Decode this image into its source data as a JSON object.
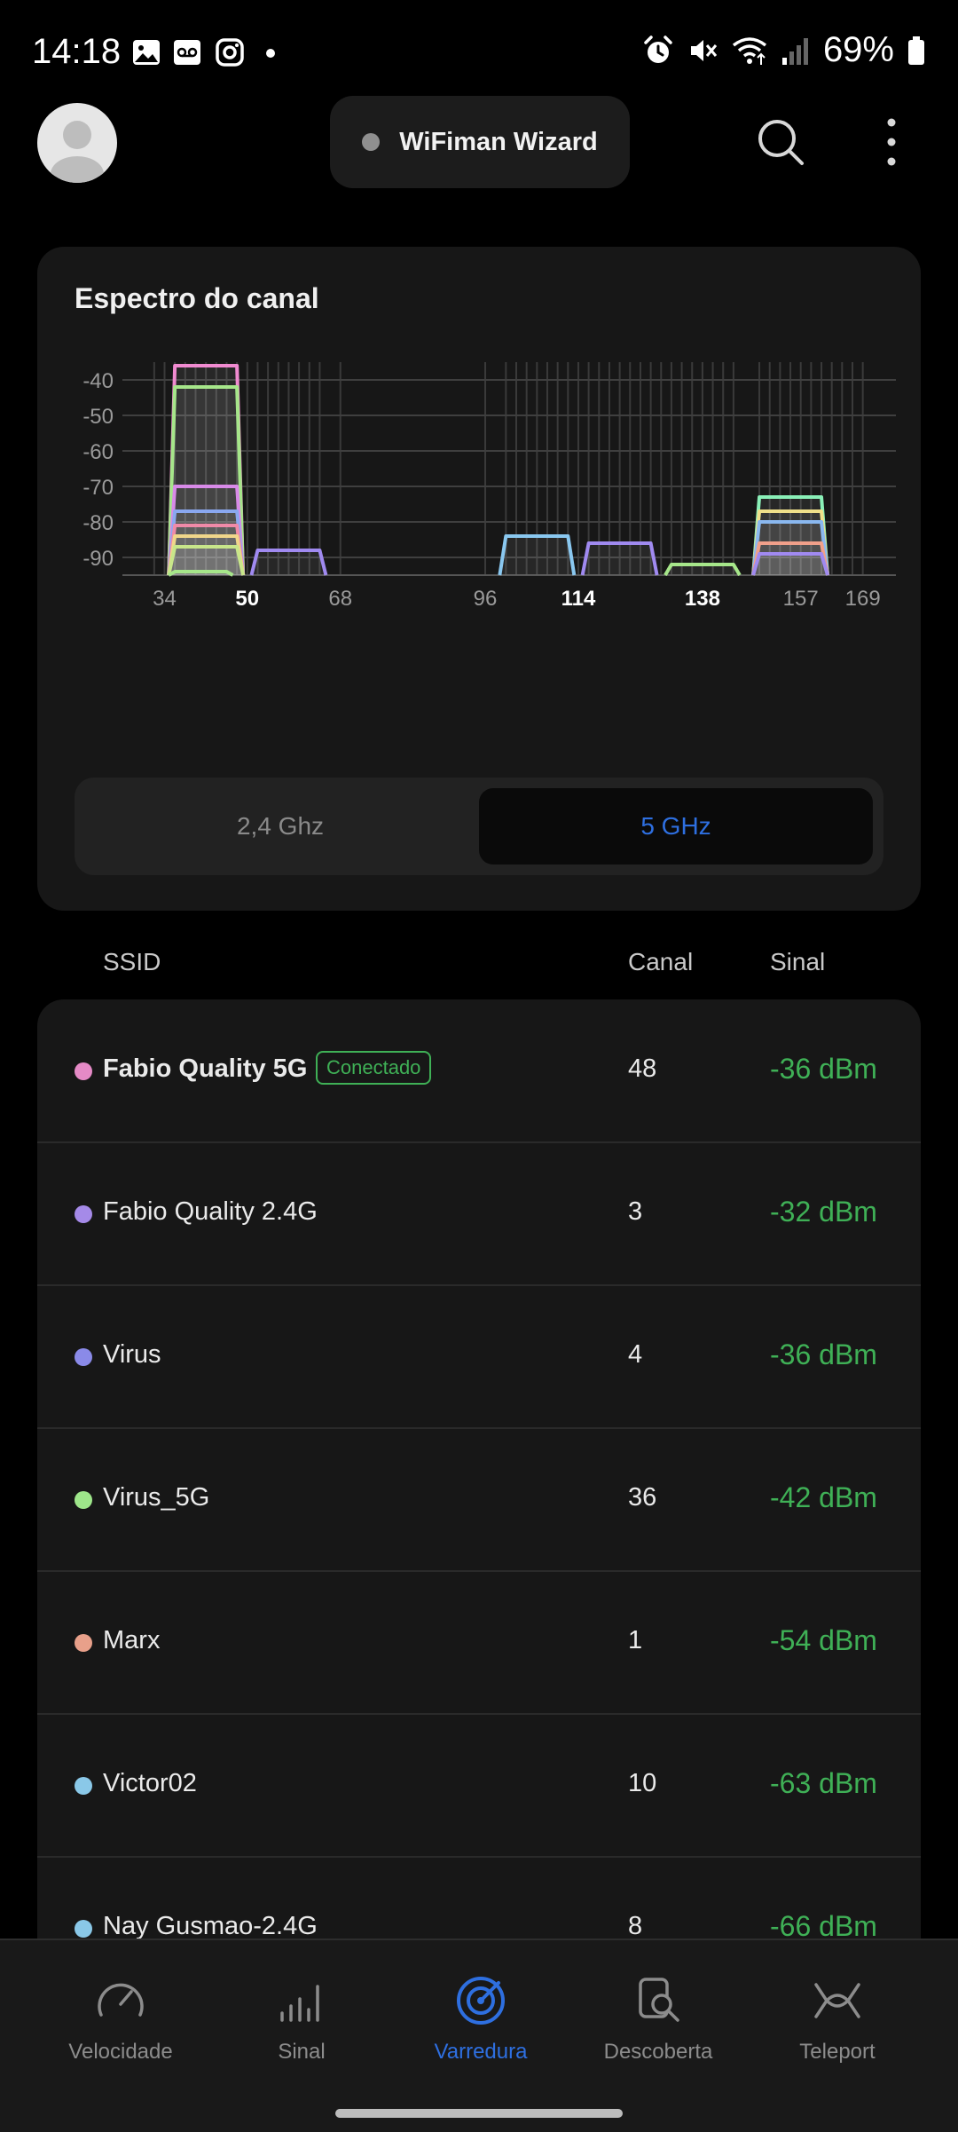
{
  "status_bar": {
    "time": "14:18",
    "battery": "69%"
  },
  "header": {
    "wizard_title": "WiFiman Wizard"
  },
  "spectrum": {
    "title": "Espectro do canal",
    "bands": {
      "option_24": "2,4 Ghz",
      "option_5": "5 GHz",
      "selected": "5 GHz"
    }
  },
  "chart_data": {
    "type": "area",
    "y_ticks": [
      "-40",
      "-50",
      "-60",
      "-70",
      "-80",
      "-90"
    ],
    "ylim": [
      -95,
      -35
    ],
    "x_ticks": [
      {
        "label": "34",
        "channel": 34,
        "highlight": false
      },
      {
        "label": "50",
        "channel": 50,
        "highlight": true
      },
      {
        "label": "68",
        "channel": 68,
        "highlight": false
      },
      {
        "label": "96",
        "channel": 96,
        "highlight": false
      },
      {
        "label": "114",
        "channel": 114,
        "highlight": true
      },
      {
        "label": "138",
        "channel": 138,
        "highlight": true
      },
      {
        "label": "157",
        "channel": 157,
        "highlight": false
      },
      {
        "label": "169",
        "channel": 169,
        "highlight": false
      }
    ],
    "series": [
      {
        "color": "#f08ad0",
        "ch_start": 36,
        "ch_end": 48,
        "dbm": -36
      },
      {
        "color": "#a6e68a",
        "ch_start": 36,
        "ch_end": 48,
        "dbm": -42
      },
      {
        "color": "#d88ae8",
        "ch_start": 36,
        "ch_end": 48,
        "dbm": -70
      },
      {
        "color": "#8aa8f0",
        "ch_start": 36,
        "ch_end": 48,
        "dbm": -77
      },
      {
        "color": "#f08aa8",
        "ch_start": 36,
        "ch_end": 48,
        "dbm": -81
      },
      {
        "color": "#f0d68a",
        "ch_start": 36,
        "ch_end": 48,
        "dbm": -84
      },
      {
        "color": "#c8e68a",
        "ch_start": 36,
        "ch_end": 48,
        "dbm": -87
      },
      {
        "color": "#a6e68a",
        "ch_start": 36,
        "ch_end": 46,
        "dbm": -94
      },
      {
        "color": "#a08af0",
        "ch_start": 52,
        "ch_end": 64,
        "dbm": -88
      },
      {
        "color": "#8ac8f0",
        "ch_start": 100,
        "ch_end": 112,
        "dbm": -84
      },
      {
        "color": "#a08af0",
        "ch_start": 116,
        "ch_end": 128,
        "dbm": -86
      },
      {
        "color": "#a6e68a",
        "ch_start": 132,
        "ch_end": 144,
        "dbm": -92
      },
      {
        "color": "#8af0b8",
        "ch_start": 149,
        "ch_end": 161,
        "dbm": -73
      },
      {
        "color": "#f0e08a",
        "ch_start": 149,
        "ch_end": 161,
        "dbm": -77
      },
      {
        "color": "#8ab8f0",
        "ch_start": 149,
        "ch_end": 161,
        "dbm": -80
      },
      {
        "color": "#f0a08a",
        "ch_start": 149,
        "ch_end": 161,
        "dbm": -86
      },
      {
        "color": "#a08af0",
        "ch_start": 149,
        "ch_end": 161,
        "dbm": -89
      }
    ]
  },
  "list": {
    "headers": {
      "ssid": "SSID",
      "canal": "Canal",
      "sinal": "Sinal"
    },
    "rows": [
      {
        "ssid": "Fabio Quality 5G",
        "badge": "Conectado",
        "canal": "48",
        "sinal": "-36 dBm",
        "color": "#e58ac6",
        "bold": true
      },
      {
        "ssid": "Fabio Quality 2.4G",
        "canal": "3",
        "sinal": "-32 dBm",
        "color": "#a58ae8"
      },
      {
        "ssid": "Virus",
        "canal": "4",
        "sinal": "-36 dBm",
        "color": "#8a8ae8"
      },
      {
        "ssid": "Virus_5G",
        "canal": "36",
        "sinal": "-42 dBm",
        "color": "#9ee68a"
      },
      {
        "ssid": "Marx",
        "canal": "1",
        "sinal": "-54 dBm",
        "color": "#e8a08a"
      },
      {
        "ssid": "Victor02",
        "canal": "10",
        "sinal": "-63 dBm",
        "color": "#8ac8e8"
      },
      {
        "ssid": "Nay Gusmao-2.4G",
        "canal": "8",
        "sinal": "-66 dBm",
        "color": "#8ac8e8"
      }
    ]
  },
  "nav": [
    {
      "label": "Velocidade",
      "icon": "speedometer-icon",
      "active": false
    },
    {
      "label": "Sinal",
      "icon": "signal-bars-icon",
      "active": false
    },
    {
      "label": "Varredura",
      "icon": "radar-icon",
      "active": true
    },
    {
      "label": "Descoberta",
      "icon": "device-search-icon",
      "active": false
    },
    {
      "label": "Teleport",
      "icon": "teleport-icon",
      "active": false
    }
  ]
}
